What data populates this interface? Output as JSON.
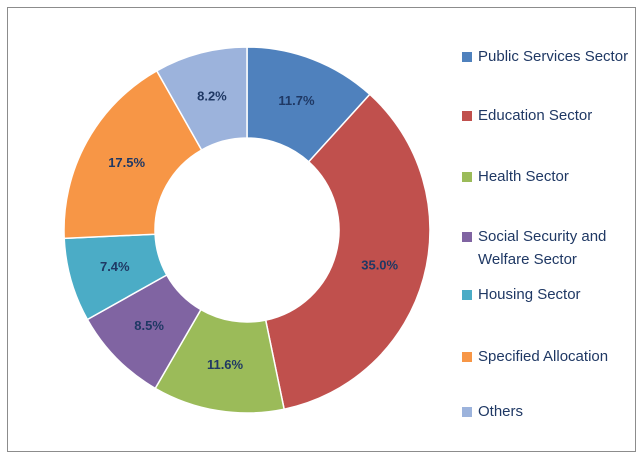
{
  "chart_data": {
    "type": "donut",
    "categories": [
      "Public Services Sector",
      "Education Sector",
      "Health Sector",
      "Social Security and Welfare Sector",
      "Housing Sector",
      "Specified Allocation",
      "Others"
    ],
    "values": [
      11.7,
      35.0,
      11.6,
      8.5,
      7.4,
      17.5,
      8.2
    ],
    "value_labels": [
      "11.7%",
      "35.0%",
      "11.6%",
      "8.5%",
      "7.4%",
      "17.5%",
      "8.2%"
    ],
    "colors": [
      "#4f81bd",
      "#c0504d",
      "#9bbb59",
      "#8064a2",
      "#4bacc6",
      "#f79646",
      "#9cb3dc"
    ],
    "legend": "right"
  }
}
